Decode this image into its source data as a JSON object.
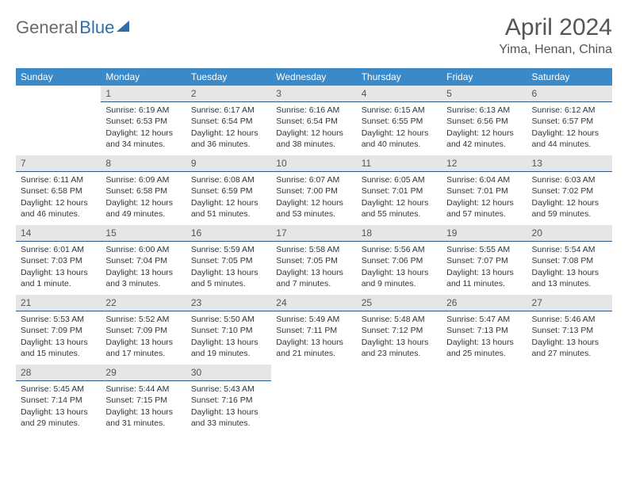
{
  "logo": {
    "part1": "General",
    "part2": "Blue"
  },
  "title": "April 2024",
  "location": "Yima, Henan, China",
  "colors": {
    "header_bg": "#3a8ac9",
    "daynum_bg": "#e6e6e6",
    "daynum_border": "#2c5b86",
    "text": "#333333",
    "title_color": "#555555",
    "logo_gray": "#6a6a6a",
    "logo_blue": "#2e6fab",
    "background": "#ffffff"
  },
  "weekdays": [
    "Sunday",
    "Monday",
    "Tuesday",
    "Wednesday",
    "Thursday",
    "Friday",
    "Saturday"
  ],
  "weeks": [
    [
      null,
      {
        "n": "1",
        "sr": "6:19 AM",
        "ss": "6:53 PM",
        "dl": "12 hours and 34 minutes."
      },
      {
        "n": "2",
        "sr": "6:17 AM",
        "ss": "6:54 PM",
        "dl": "12 hours and 36 minutes."
      },
      {
        "n": "3",
        "sr": "6:16 AM",
        "ss": "6:54 PM",
        "dl": "12 hours and 38 minutes."
      },
      {
        "n": "4",
        "sr": "6:15 AM",
        "ss": "6:55 PM",
        "dl": "12 hours and 40 minutes."
      },
      {
        "n": "5",
        "sr": "6:13 AM",
        "ss": "6:56 PM",
        "dl": "12 hours and 42 minutes."
      },
      {
        "n": "6",
        "sr": "6:12 AM",
        "ss": "6:57 PM",
        "dl": "12 hours and 44 minutes."
      }
    ],
    [
      {
        "n": "7",
        "sr": "6:11 AM",
        "ss": "6:58 PM",
        "dl": "12 hours and 46 minutes."
      },
      {
        "n": "8",
        "sr": "6:09 AM",
        "ss": "6:58 PM",
        "dl": "12 hours and 49 minutes."
      },
      {
        "n": "9",
        "sr": "6:08 AM",
        "ss": "6:59 PM",
        "dl": "12 hours and 51 minutes."
      },
      {
        "n": "10",
        "sr": "6:07 AM",
        "ss": "7:00 PM",
        "dl": "12 hours and 53 minutes."
      },
      {
        "n": "11",
        "sr": "6:05 AM",
        "ss": "7:01 PM",
        "dl": "12 hours and 55 minutes."
      },
      {
        "n": "12",
        "sr": "6:04 AM",
        "ss": "7:01 PM",
        "dl": "12 hours and 57 minutes."
      },
      {
        "n": "13",
        "sr": "6:03 AM",
        "ss": "7:02 PM",
        "dl": "12 hours and 59 minutes."
      }
    ],
    [
      {
        "n": "14",
        "sr": "6:01 AM",
        "ss": "7:03 PM",
        "dl": "13 hours and 1 minute."
      },
      {
        "n": "15",
        "sr": "6:00 AM",
        "ss": "7:04 PM",
        "dl": "13 hours and 3 minutes."
      },
      {
        "n": "16",
        "sr": "5:59 AM",
        "ss": "7:05 PM",
        "dl": "13 hours and 5 minutes."
      },
      {
        "n": "17",
        "sr": "5:58 AM",
        "ss": "7:05 PM",
        "dl": "13 hours and 7 minutes."
      },
      {
        "n": "18",
        "sr": "5:56 AM",
        "ss": "7:06 PM",
        "dl": "13 hours and 9 minutes."
      },
      {
        "n": "19",
        "sr": "5:55 AM",
        "ss": "7:07 PM",
        "dl": "13 hours and 11 minutes."
      },
      {
        "n": "20",
        "sr": "5:54 AM",
        "ss": "7:08 PM",
        "dl": "13 hours and 13 minutes."
      }
    ],
    [
      {
        "n": "21",
        "sr": "5:53 AM",
        "ss": "7:09 PM",
        "dl": "13 hours and 15 minutes."
      },
      {
        "n": "22",
        "sr": "5:52 AM",
        "ss": "7:09 PM",
        "dl": "13 hours and 17 minutes."
      },
      {
        "n": "23",
        "sr": "5:50 AM",
        "ss": "7:10 PM",
        "dl": "13 hours and 19 minutes."
      },
      {
        "n": "24",
        "sr": "5:49 AM",
        "ss": "7:11 PM",
        "dl": "13 hours and 21 minutes."
      },
      {
        "n": "25",
        "sr": "5:48 AM",
        "ss": "7:12 PM",
        "dl": "13 hours and 23 minutes."
      },
      {
        "n": "26",
        "sr": "5:47 AM",
        "ss": "7:13 PM",
        "dl": "13 hours and 25 minutes."
      },
      {
        "n": "27",
        "sr": "5:46 AM",
        "ss": "7:13 PM",
        "dl": "13 hours and 27 minutes."
      }
    ],
    [
      {
        "n": "28",
        "sr": "5:45 AM",
        "ss": "7:14 PM",
        "dl": "13 hours and 29 minutes."
      },
      {
        "n": "29",
        "sr": "5:44 AM",
        "ss": "7:15 PM",
        "dl": "13 hours and 31 minutes."
      },
      {
        "n": "30",
        "sr": "5:43 AM",
        "ss": "7:16 PM",
        "dl": "13 hours and 33 minutes."
      },
      null,
      null,
      null,
      null
    ]
  ]
}
